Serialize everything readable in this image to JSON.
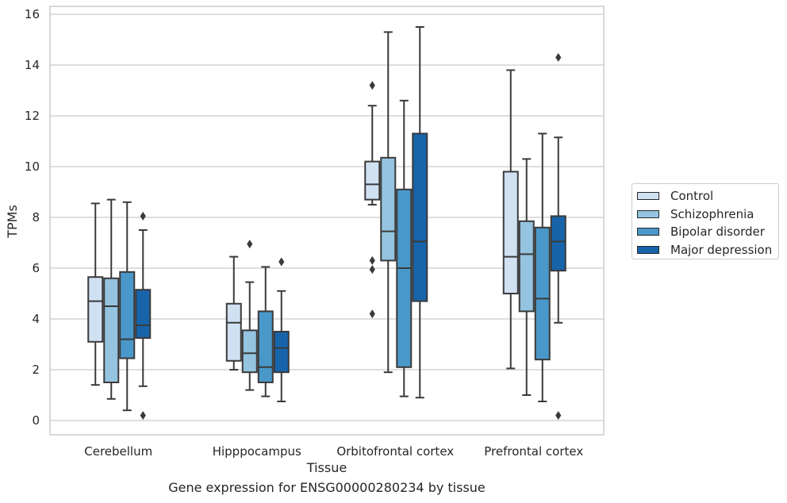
{
  "chart_data": {
    "type": "box",
    "caption": "Gene expression for ENSG00000280234 by tissue",
    "xlabel": "Tissue",
    "ylabel": "TPMs",
    "ylim": [
      -0.5,
      16.3
    ],
    "yticks": [
      0,
      2,
      4,
      6,
      8,
      10,
      12,
      14,
      16
    ],
    "grid": true,
    "legend_position": "right",
    "categories": [
      "Cerebellum",
      "Hipppocampus",
      "Orbitofrontal cortex",
      "Prefrontal cortex"
    ],
    "series": [
      {
        "name": "Control",
        "color": "#d0e1f2",
        "boxes": [
          {
            "whislo": 1.4,
            "q1": 3.1,
            "med": 4.7,
            "q3": 5.65,
            "whishi": 8.55,
            "fliers": []
          },
          {
            "whislo": 2.0,
            "q1": 2.35,
            "med": 3.85,
            "q3": 4.6,
            "whishi": 6.45,
            "fliers": []
          },
          {
            "whislo": 8.5,
            "q1": 8.7,
            "med": 9.3,
            "q3": 10.2,
            "whishi": 12.4,
            "fliers": [
              13.2,
              6.3,
              5.95,
              4.2
            ]
          },
          {
            "whislo": 2.05,
            "q1": 5.0,
            "med": 6.45,
            "q3": 9.8,
            "whishi": 13.8,
            "fliers": []
          }
        ]
      },
      {
        "name": "Schizophrenia",
        "color": "#94c4df",
        "boxes": [
          {
            "whislo": 0.85,
            "q1": 1.5,
            "med": 4.5,
            "q3": 5.6,
            "whishi": 8.7,
            "fliers": []
          },
          {
            "whislo": 1.2,
            "q1": 1.9,
            "med": 2.65,
            "q3": 3.55,
            "whishi": 5.45,
            "fliers": [
              6.95
            ]
          },
          {
            "whislo": 1.9,
            "q1": 6.3,
            "med": 7.45,
            "q3": 10.35,
            "whishi": 15.3,
            "fliers": []
          },
          {
            "whislo": 1.0,
            "q1": 4.3,
            "med": 6.55,
            "q3": 7.85,
            "whishi": 10.3,
            "fliers": []
          }
        ]
      },
      {
        "name": "Bipolar disorder",
        "color": "#4a98c9",
        "boxes": [
          {
            "whislo": 0.4,
            "q1": 2.45,
            "med": 3.2,
            "q3": 5.85,
            "whishi": 8.6,
            "fliers": []
          },
          {
            "whislo": 0.95,
            "q1": 1.5,
            "med": 2.1,
            "q3": 4.3,
            "whishi": 6.05,
            "fliers": []
          },
          {
            "whislo": 0.95,
            "q1": 2.1,
            "med": 6.0,
            "q3": 9.1,
            "whishi": 12.6,
            "fliers": []
          },
          {
            "whislo": 0.75,
            "q1": 2.4,
            "med": 4.8,
            "q3": 7.6,
            "whishi": 11.3,
            "fliers": []
          }
        ]
      },
      {
        "name": "Major depression",
        "color": "#1764ab",
        "boxes": [
          {
            "whislo": 1.35,
            "q1": 3.25,
            "med": 3.75,
            "q3": 5.15,
            "whishi": 7.5,
            "fliers": [
              8.05,
              0.2
            ]
          },
          {
            "whislo": 0.75,
            "q1": 1.9,
            "med": 2.85,
            "q3": 3.5,
            "whishi": 5.1,
            "fliers": [
              6.25
            ]
          },
          {
            "whislo": 0.9,
            "q1": 4.7,
            "med": 7.05,
            "q3": 11.3,
            "whishi": 15.5,
            "fliers": []
          },
          {
            "whislo": 3.85,
            "q1": 5.9,
            "med": 7.05,
            "q3": 8.05,
            "whishi": 11.15,
            "fliers": [
              14.3,
              0.2
            ]
          }
        ]
      }
    ]
  }
}
